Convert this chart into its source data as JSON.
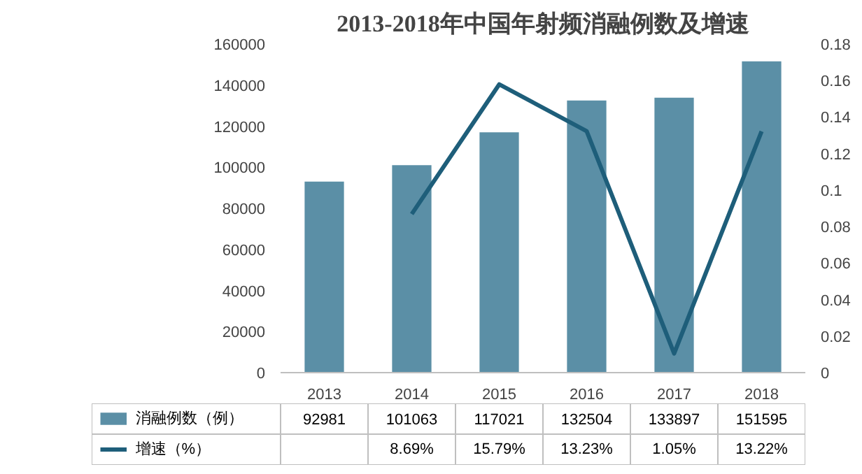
{
  "chart_data": {
    "type": "bar",
    "title": "2013-2018年中国年射频消融例数及增速",
    "categories": [
      "2013",
      "2014",
      "2015",
      "2016",
      "2017",
      "2018"
    ],
    "series": [
      {
        "name": "消融例数（例）",
        "type": "bar",
        "color": "#5b8fa6",
        "values": [
          92981,
          101063,
          117021,
          132504,
          133897,
          151595
        ],
        "value_labels": [
          "92981",
          "101063",
          "117021",
          "132504",
          "133897",
          "151595"
        ]
      },
      {
        "name": "增速（%）",
        "type": "line",
        "axis": "y2",
        "color": "#1e5e7a",
        "values": [
          null,
          0.0869,
          0.1579,
          0.1323,
          0.0105,
          0.1322
        ],
        "value_labels": [
          null,
          "8.69%",
          "15.79%",
          "13.23%",
          "1.05%",
          "13.22%"
        ]
      }
    ],
    "ylim": [
      0,
      160000
    ],
    "yticks": [
      0,
      20000,
      40000,
      60000,
      80000,
      100000,
      120000,
      140000,
      160000
    ],
    "y2lim": [
      0,
      0.18
    ],
    "y2ticks": [
      0,
      0.02,
      0.04,
      0.06,
      0.08,
      {
        "value": 0.1,
        "label": "0.1"
      },
      0.12,
      0.14,
      0.16,
      0.18
    ],
    "legend": "bottom",
    "marker": "none",
    "line_style": "solid"
  }
}
